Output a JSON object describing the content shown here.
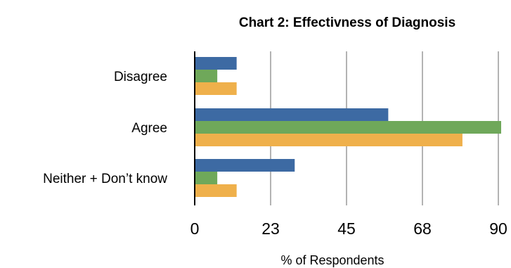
{
  "chart_data": {
    "type": "bar",
    "orientation": "horizontal",
    "title": "Chart 2: Effectivness of Diagnosis",
    "xlabel": "% of Respondents",
    "ylabel": "",
    "categories": [
      "Disagree",
      "Agree",
      "Neither + Don’t know"
    ],
    "series": [
      {
        "values": [
          13,
          60,
          31
        ],
        "color": "#3d6aa3"
      },
      {
        "values": [
          7,
          95,
          7
        ],
        "color": "#6fa85a"
      },
      {
        "values": [
          13,
          83,
          13
        ],
        "color": "#efb04b"
      }
    ],
    "xticks": [
      "0",
      "23",
      "45",
      "68",
      "90"
    ],
    "xlim": [
      0,
      95
    ],
    "grid": true,
    "legend": "none"
  }
}
